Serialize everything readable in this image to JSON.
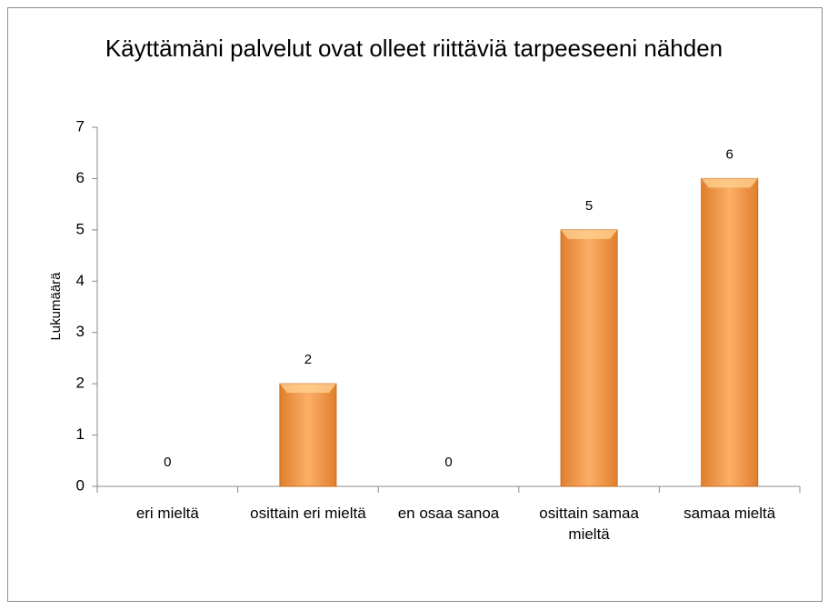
{
  "chart_data": {
    "type": "bar",
    "title": "Käyttämäni palvelut ovat olleet riittäviä tarpeeseeni nähden",
    "y_label": "Lukumäärä",
    "categories": [
      "eri mieltä",
      "osittain eri mieltä",
      "en osaa sanoa",
      "osittain samaa mieltä",
      "samaa mieltä"
    ],
    "values": [
      0,
      2,
      0,
      5,
      6
    ],
    "color": "#f59a45",
    "ylim": [
      0,
      7
    ],
    "yticks": [
      0,
      1,
      2,
      3,
      4,
      5,
      6,
      7
    ],
    "grid": false,
    "data_labels": true
  }
}
